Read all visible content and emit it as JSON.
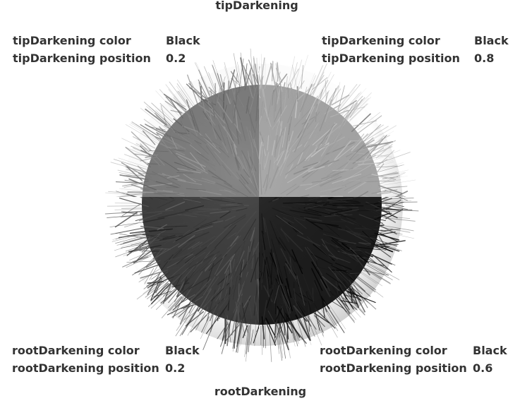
{
  "top_title": "tipDarkening",
  "bottom_title": "rootDarkening",
  "panels": {
    "top_left": {
      "color_label": "tipDarkening color",
      "color_value": "Black",
      "position_label": "tipDarkening position",
      "position_value": "0.2"
    },
    "top_right": {
      "color_label": "tipDarkening color",
      "color_value": "Black",
      "position_label": "tipDarkening position",
      "position_value": "0.8"
    },
    "bottom_left": {
      "color_label": "rootDarkening color",
      "color_value": "Black",
      "position_label": "rootDarkening position",
      "position_value": "0.2"
    },
    "bottom_right": {
      "color_label": "rootDarkening color",
      "color_value": "Black",
      "position_label": "rootDarkening position",
      "position_value": "0.6"
    }
  },
  "colors": {
    "text": "#333333",
    "quadrant_top_left": "#7a7a7a",
    "quadrant_top_right": "#a4a4a4",
    "quadrant_bottom_left": "#3c3c3c",
    "quadrant_bottom_right": "#1c1c1c",
    "background": "#ffffff"
  }
}
